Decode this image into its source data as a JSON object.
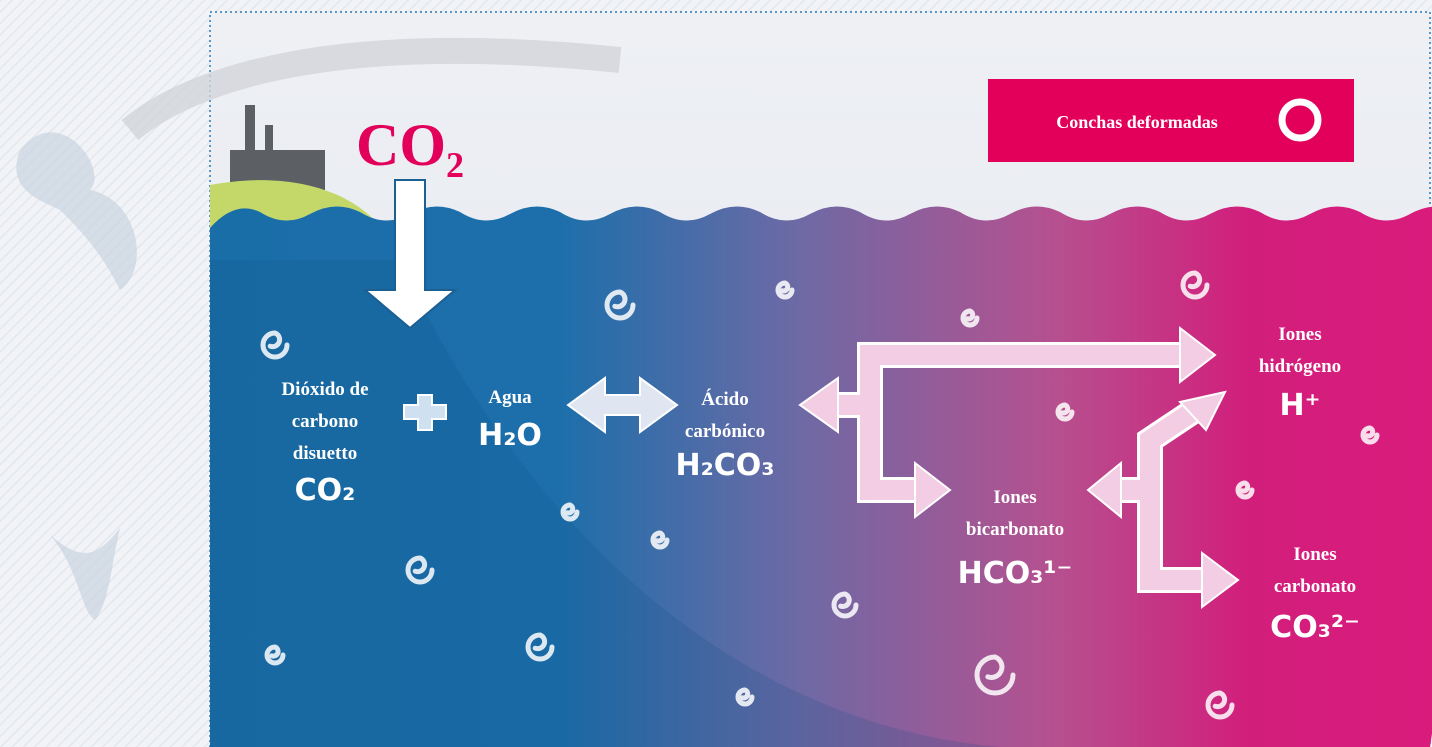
{
  "badge": "Conchas deformadas",
  "emission": "CO₂",
  "nodes": [
    {
      "lines": [
        "Dióxido de",
        "carbono",
        "disuetto"
      ],
      "formula": "CO₂"
    },
    {
      "lines": [
        "Agua"
      ],
      "formula": "H₂O"
    },
    {
      "lines": [
        "Ácido",
        "carbónico"
      ],
      "formula": "H₂CO₃"
    },
    {
      "lines": [
        "Iones",
        "bicarbonato"
      ],
      "formula": "HCO₃¹⁻"
    },
    {
      "lines": [
        "Iones",
        "hidrógeno"
      ],
      "formula": "H⁺"
    },
    {
      "lines": [
        "Iones",
        "carbonato"
      ],
      "formula": "CO₃²⁻"
    }
  ]
}
